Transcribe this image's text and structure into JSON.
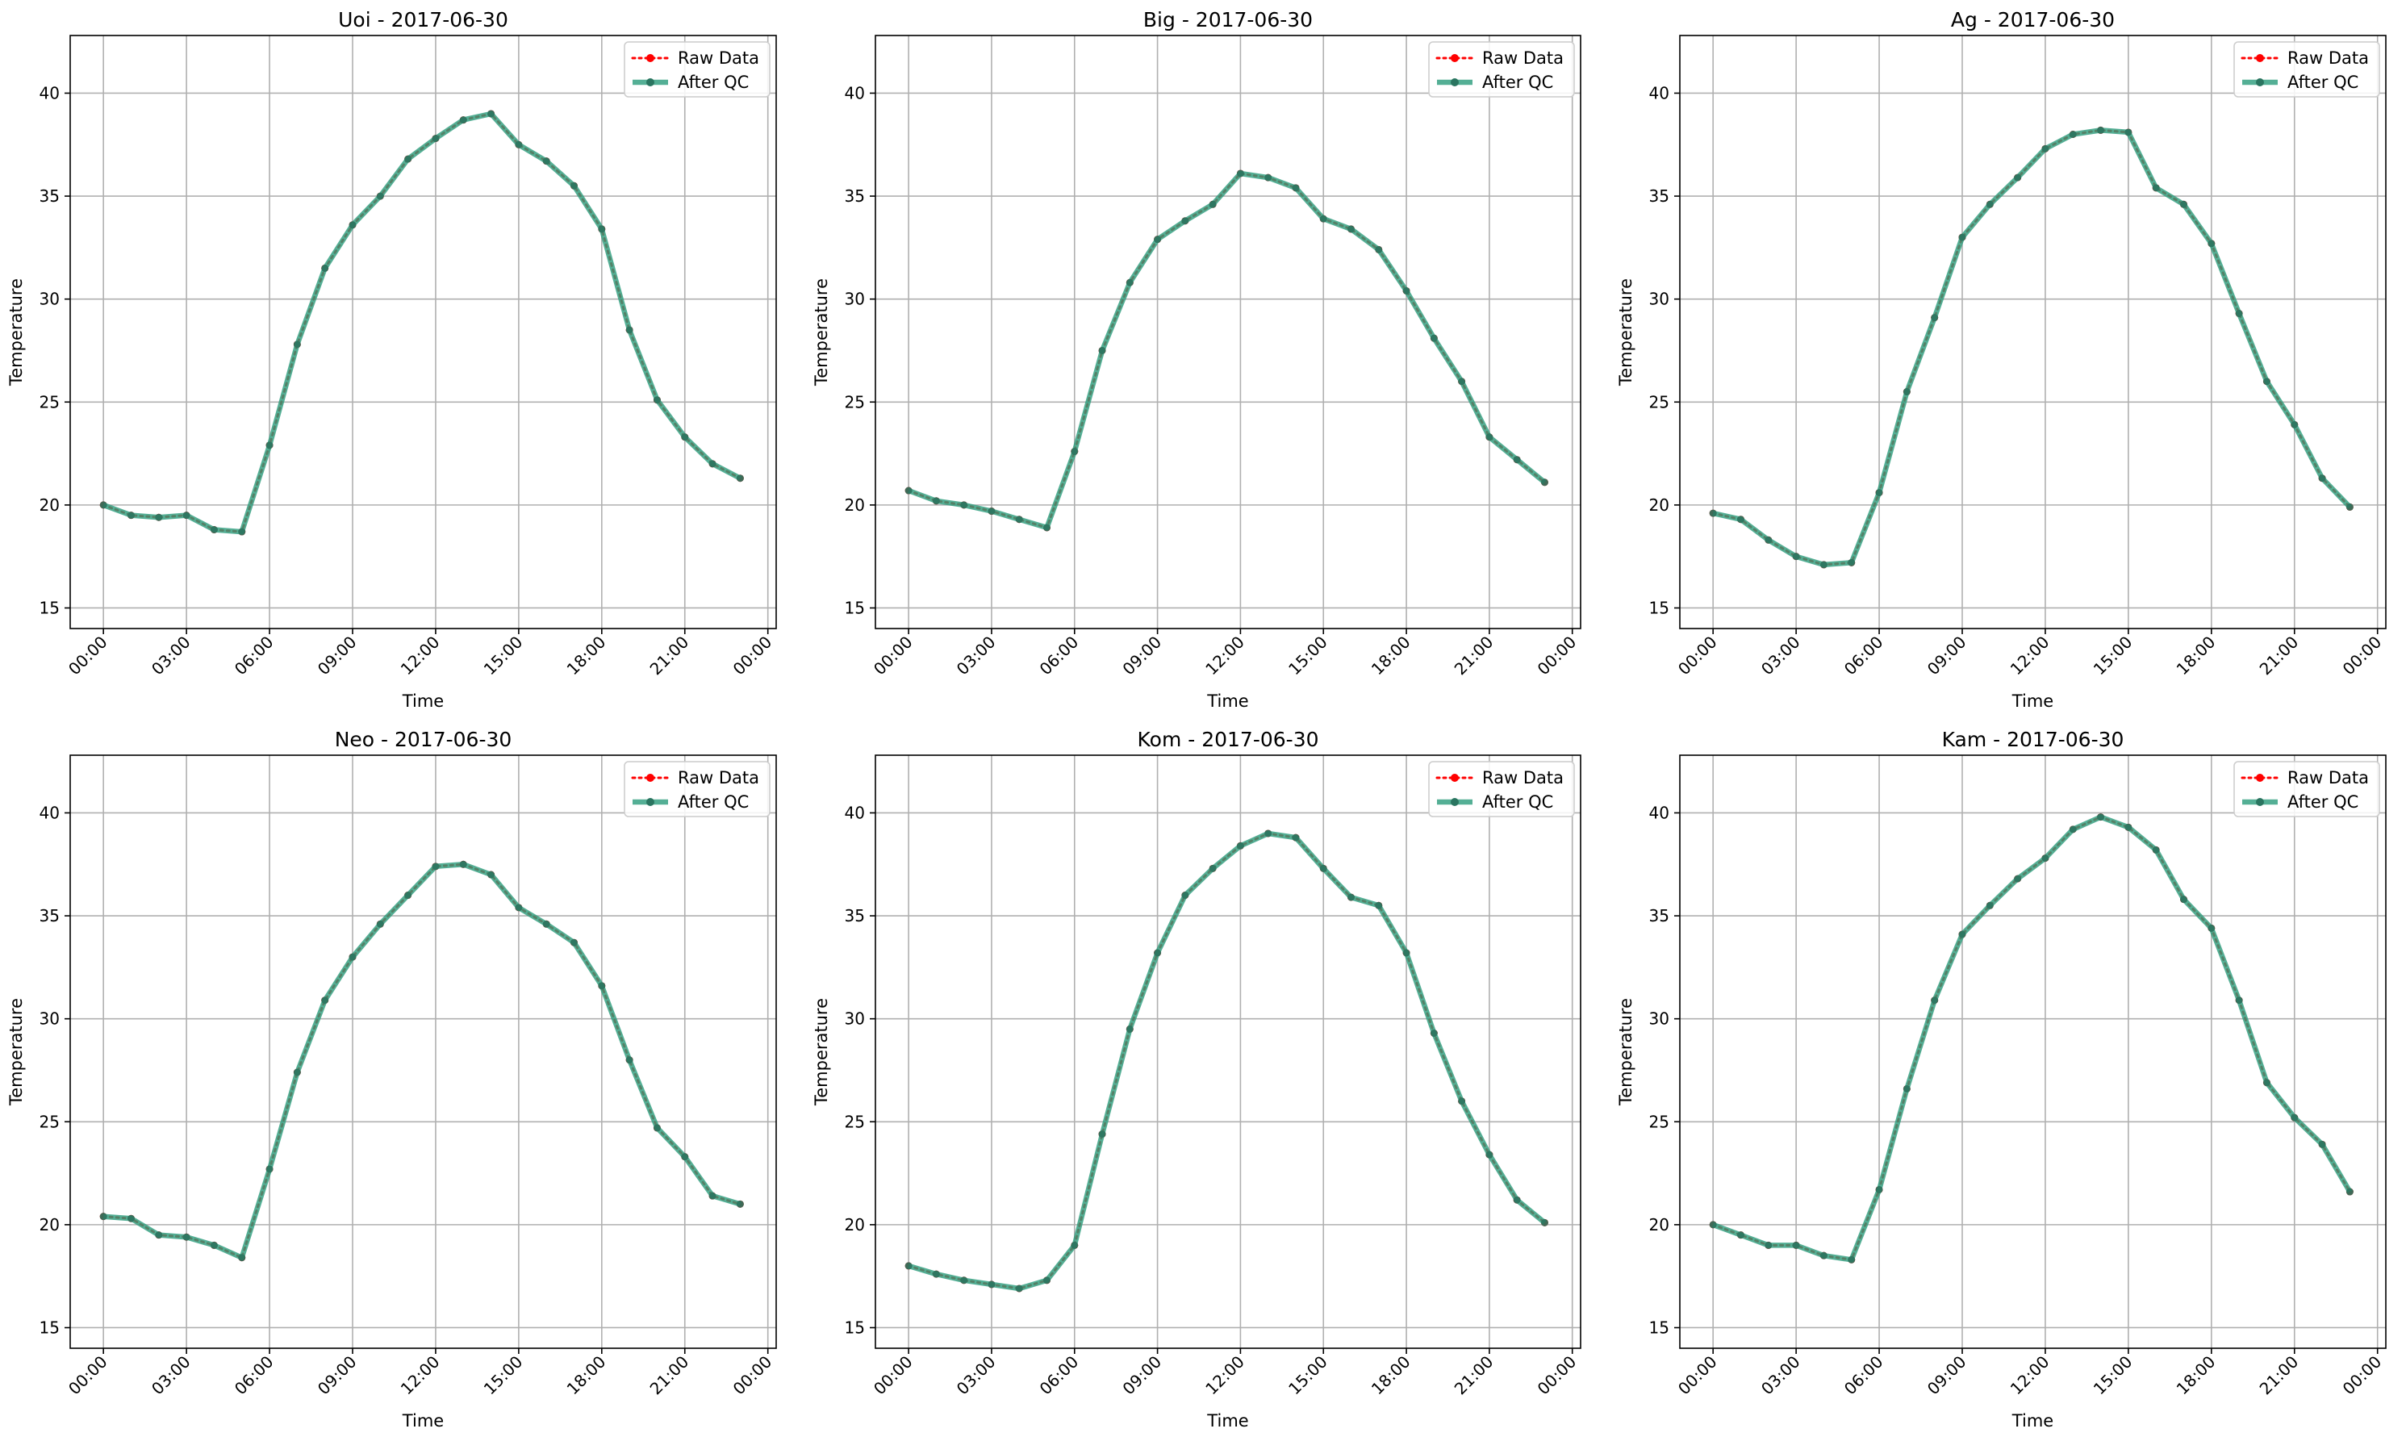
{
  "chart_data": [
    {
      "type": "line",
      "title": "Uoi - 2017-06-30",
      "xlabel": "Time",
      "ylabel": "Temperature",
      "xtick_labels": [
        "00:00",
        "03:00",
        "06:00",
        "09:00",
        "12:00",
        "15:00",
        "18:00",
        "21:00",
        "00:00"
      ],
      "xlim_hours": [
        -1.2,
        24.3
      ],
      "ylim": [
        14,
        42.8
      ],
      "yticks": [
        15,
        20,
        25,
        30,
        35,
        40
      ],
      "grid": true,
      "legend": "top-right",
      "x_hours": [
        0,
        1,
        2,
        3,
        4,
        5,
        6,
        7,
        8,
        9,
        10,
        11,
        12,
        13,
        14,
        15,
        16,
        17,
        18,
        19,
        20,
        21,
        22,
        23
      ],
      "series": [
        {
          "name": "Raw Data",
          "color": "#ff0000",
          "style": "dotted",
          "values": [
            20.0,
            19.5,
            19.4,
            19.5,
            18.8,
            18.7,
            22.9,
            27.8,
            31.5,
            33.6,
            35.0,
            36.8,
            37.8,
            38.7,
            39.0,
            37.5,
            36.7,
            35.5,
            33.4,
            28.5,
            25.1,
            23.3,
            22.0,
            21.3
          ]
        },
        {
          "name": "After QC",
          "color": "#2e9e7e",
          "style": "solid",
          "values": [
            20.0,
            19.5,
            19.4,
            19.5,
            18.8,
            18.7,
            22.9,
            27.8,
            31.5,
            33.6,
            35.0,
            36.8,
            37.8,
            38.7,
            39.0,
            37.5,
            36.7,
            35.5,
            33.4,
            28.5,
            25.1,
            23.3,
            22.0,
            21.3
          ]
        }
      ]
    },
    {
      "type": "line",
      "title": "Big - 2017-06-30",
      "xlabel": "Time",
      "ylabel": "Temperature",
      "xtick_labels": [
        "00:00",
        "03:00",
        "06:00",
        "09:00",
        "12:00",
        "15:00",
        "18:00",
        "21:00",
        "00:00"
      ],
      "xlim_hours": [
        -1.2,
        24.3
      ],
      "ylim": [
        14,
        42.8
      ],
      "yticks": [
        15,
        20,
        25,
        30,
        35,
        40
      ],
      "grid": true,
      "legend": "top-right",
      "x_hours": [
        0,
        1,
        2,
        3,
        4,
        5,
        6,
        7,
        8,
        9,
        10,
        11,
        12,
        13,
        14,
        15,
        16,
        17,
        18,
        19,
        20,
        21,
        22,
        23
      ],
      "series": [
        {
          "name": "Raw Data",
          "color": "#ff0000",
          "style": "dotted",
          "values": [
            20.7,
            20.2,
            20.0,
            19.7,
            19.3,
            18.9,
            22.6,
            27.5,
            30.8,
            32.9,
            33.8,
            34.6,
            36.1,
            35.9,
            35.4,
            33.9,
            33.4,
            32.4,
            30.4,
            28.1,
            26.0,
            23.3,
            22.2,
            21.1
          ]
        },
        {
          "name": "After QC",
          "color": "#2e9e7e",
          "style": "solid",
          "values": [
            20.7,
            20.2,
            20.0,
            19.7,
            19.3,
            18.9,
            22.6,
            27.5,
            30.8,
            32.9,
            33.8,
            34.6,
            36.1,
            35.9,
            35.4,
            33.9,
            33.4,
            32.4,
            30.4,
            28.1,
            26.0,
            23.3,
            22.2,
            21.1
          ]
        }
      ]
    },
    {
      "type": "line",
      "title": "Ag - 2017-06-30",
      "xlabel": "Time",
      "ylabel": "Temperature",
      "xtick_labels": [
        "00:00",
        "03:00",
        "06:00",
        "09:00",
        "12:00",
        "15:00",
        "18:00",
        "21:00",
        "00:00"
      ],
      "xlim_hours": [
        -1.2,
        24.3
      ],
      "ylim": [
        14,
        42.8
      ],
      "yticks": [
        15,
        20,
        25,
        30,
        35,
        40
      ],
      "grid": true,
      "legend": "top-right",
      "x_hours": [
        0,
        1,
        2,
        3,
        4,
        5,
        6,
        7,
        8,
        9,
        10,
        11,
        12,
        13,
        14,
        15,
        16,
        17,
        18,
        19,
        20,
        21,
        22,
        23
      ],
      "series": [
        {
          "name": "Raw Data",
          "color": "#ff0000",
          "style": "dotted",
          "values": [
            19.6,
            19.3,
            18.3,
            17.5,
            17.1,
            17.2,
            20.6,
            25.5,
            29.1,
            33.0,
            34.6,
            35.9,
            37.3,
            38.0,
            38.2,
            38.1,
            35.4,
            34.6,
            32.7,
            29.3,
            26.0,
            23.9,
            21.3,
            19.9
          ]
        },
        {
          "name": "After QC",
          "color": "#2e9e7e",
          "style": "solid",
          "values": [
            19.6,
            19.3,
            18.3,
            17.5,
            17.1,
            17.2,
            20.6,
            25.5,
            29.1,
            33.0,
            34.6,
            35.9,
            37.3,
            38.0,
            38.2,
            38.1,
            35.4,
            34.6,
            32.7,
            29.3,
            26.0,
            23.9,
            21.3,
            19.9
          ]
        }
      ]
    },
    {
      "type": "line",
      "title": "Neo - 2017-06-30",
      "xlabel": "Time",
      "ylabel": "Temperature",
      "xtick_labels": [
        "00:00",
        "03:00",
        "06:00",
        "09:00",
        "12:00",
        "15:00",
        "18:00",
        "21:00",
        "00:00"
      ],
      "xlim_hours": [
        -1.2,
        24.3
      ],
      "ylim": [
        14,
        42.8
      ],
      "yticks": [
        15,
        20,
        25,
        30,
        35,
        40
      ],
      "grid": true,
      "legend": "top-right",
      "x_hours": [
        0,
        1,
        2,
        3,
        4,
        5,
        6,
        7,
        8,
        9,
        10,
        11,
        12,
        13,
        14,
        15,
        16,
        17,
        18,
        19,
        20,
        21,
        22,
        23
      ],
      "series": [
        {
          "name": "Raw Data",
          "color": "#ff0000",
          "style": "dotted",
          "values": [
            20.4,
            20.3,
            19.5,
            19.4,
            19.0,
            18.4,
            22.7,
            27.4,
            30.9,
            33.0,
            34.6,
            36.0,
            37.4,
            37.5,
            37.0,
            35.4,
            34.6,
            33.7,
            31.6,
            28.0,
            24.7,
            23.3,
            21.4,
            21.0
          ]
        },
        {
          "name": "After QC",
          "color": "#2e9e7e",
          "style": "solid",
          "values": [
            20.4,
            20.3,
            19.5,
            19.4,
            19.0,
            18.4,
            22.7,
            27.4,
            30.9,
            33.0,
            34.6,
            36.0,
            37.4,
            37.5,
            37.0,
            35.4,
            34.6,
            33.7,
            31.6,
            28.0,
            24.7,
            23.3,
            21.4,
            21.0
          ]
        }
      ]
    },
    {
      "type": "line",
      "title": "Kom - 2017-06-30",
      "xlabel": "Time",
      "ylabel": "Temperature",
      "xtick_labels": [
        "00:00",
        "03:00",
        "06:00",
        "09:00",
        "12:00",
        "15:00",
        "18:00",
        "21:00",
        "00:00"
      ],
      "xlim_hours": [
        -1.2,
        24.3
      ],
      "ylim": [
        14,
        42.8
      ],
      "yticks": [
        15,
        20,
        25,
        30,
        35,
        40
      ],
      "grid": true,
      "legend": "top-right",
      "x_hours": [
        0,
        1,
        2,
        3,
        4,
        5,
        6,
        7,
        8,
        9,
        10,
        11,
        12,
        13,
        14,
        15,
        16,
        17,
        18,
        19,
        20,
        21,
        22,
        23
      ],
      "series": [
        {
          "name": "Raw Data",
          "color": "#ff0000",
          "style": "dotted",
          "values": [
            18.0,
            17.6,
            17.3,
            17.1,
            16.9,
            17.3,
            19.0,
            24.4,
            29.5,
            33.2,
            36.0,
            37.3,
            38.4,
            39.0,
            38.8,
            37.3,
            35.9,
            35.5,
            33.2,
            29.3,
            26.0,
            23.4,
            21.2,
            20.1
          ]
        },
        {
          "name": "After QC",
          "color": "#2e9e7e",
          "style": "solid",
          "values": [
            18.0,
            17.6,
            17.3,
            17.1,
            16.9,
            17.3,
            19.0,
            24.4,
            29.5,
            33.2,
            36.0,
            37.3,
            38.4,
            39.0,
            38.8,
            37.3,
            35.9,
            35.5,
            33.2,
            29.3,
            26.0,
            23.4,
            21.2,
            20.1
          ]
        }
      ]
    },
    {
      "type": "line",
      "title": "Kam - 2017-06-30",
      "xlabel": "Time",
      "ylabel": "Temperature",
      "xtick_labels": [
        "00:00",
        "03:00",
        "06:00",
        "09:00",
        "12:00",
        "15:00",
        "18:00",
        "21:00",
        "00:00"
      ],
      "xlim_hours": [
        -1.2,
        24.3
      ],
      "ylim": [
        14,
        42.8
      ],
      "yticks": [
        15,
        20,
        25,
        30,
        35,
        40
      ],
      "grid": true,
      "legend": "top-right",
      "x_hours": [
        0,
        1,
        2,
        3,
        4,
        5,
        6,
        7,
        8,
        9,
        10,
        11,
        12,
        13,
        14,
        15,
        16,
        17,
        18,
        19,
        20,
        21,
        22,
        23
      ],
      "series": [
        {
          "name": "Raw Data",
          "color": "#ff0000",
          "style": "dotted",
          "values": [
            20.0,
            19.5,
            19.0,
            19.0,
            18.5,
            18.3,
            21.7,
            26.6,
            30.9,
            34.1,
            35.5,
            36.8,
            37.8,
            39.2,
            39.8,
            39.3,
            38.2,
            35.8,
            34.4,
            30.9,
            26.9,
            25.2,
            23.9,
            21.6
          ]
        },
        {
          "name": "After QC",
          "color": "#2e9e7e",
          "style": "solid",
          "values": [
            20.0,
            19.5,
            19.0,
            19.0,
            18.5,
            18.3,
            21.7,
            26.6,
            30.9,
            34.1,
            35.5,
            36.8,
            37.8,
            39.2,
            39.8,
            39.3,
            38.2,
            35.8,
            34.4,
            30.9,
            26.9,
            25.2,
            23.9,
            21.6
          ]
        }
      ]
    }
  ]
}
